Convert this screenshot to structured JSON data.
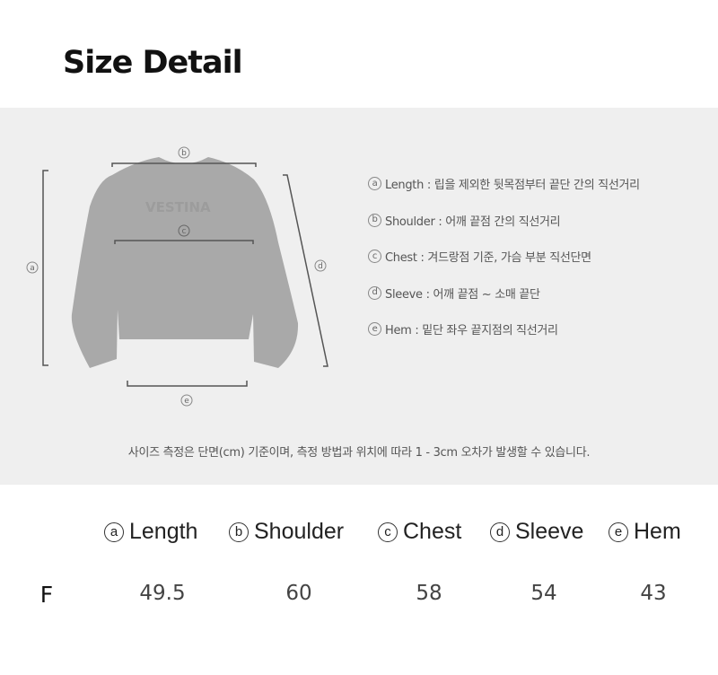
{
  "title": "Size Detail",
  "diagram": {
    "markers": [
      "a",
      "b",
      "c",
      "d",
      "e"
    ],
    "logo_text": "VESTINA",
    "garment_color": "#a9a9a9",
    "panel_color": "#efefef"
  },
  "definitions": [
    {
      "marker": "a",
      "text": "Length : 립을 제외한 뒷목점부터 끝단 간의 직선거리"
    },
    {
      "marker": "b",
      "text": "Shoulder : 어깨 끝점 간의 직선거리"
    },
    {
      "marker": "c",
      "text": "Chest : 겨드랑점 기준, 가슴 부분 직선단면"
    },
    {
      "marker": "d",
      "text": "Sleeve : 어깨 끝점 ~ 소매 끝단"
    },
    {
      "marker": "e",
      "text": "Hem : 밑단 좌우 끝지점의 직선거리"
    }
  ],
  "note": "사이즈 측정은 단면(cm) 기준이며, 측정 방법과 위치에 따라 1 - 3cm 오차가 발생할 수 있습니다.",
  "table": {
    "headers": [
      {
        "marker": "a",
        "label": "Length"
      },
      {
        "marker": "b",
        "label": "Shoulder"
      },
      {
        "marker": "c",
        "label": "Chest"
      },
      {
        "marker": "d",
        "label": "Sleeve"
      },
      {
        "marker": "e",
        "label": "Hem"
      }
    ],
    "rows": [
      {
        "size": "F",
        "values": [
          "49.5",
          "60",
          "58",
          "54",
          "43"
        ]
      }
    ]
  }
}
